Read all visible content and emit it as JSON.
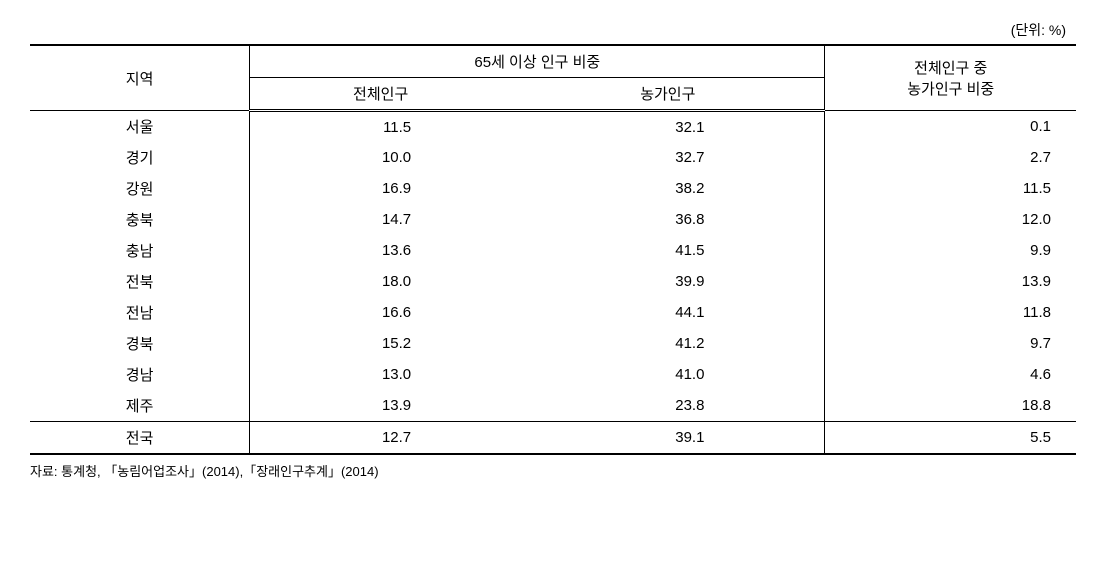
{
  "unit_label": "(단위: %)",
  "headers": {
    "region": "지역",
    "over65_group": "65세 이상 인구 비중",
    "total_pop": "전체인구",
    "farm_pop": "농가인구",
    "farm_share_line1": "전체인구 중",
    "farm_share_line2": "농가인구 비중"
  },
  "rows": {
    "r0": {
      "region": "서울",
      "total": "11.5",
      "farm": "32.1",
      "share": "0.1"
    },
    "r1": {
      "region": "경기",
      "total": "10.0",
      "farm": "32.7",
      "share": "2.7"
    },
    "r2": {
      "region": "강원",
      "total": "16.9",
      "farm": "38.2",
      "share": "11.5"
    },
    "r3": {
      "region": "충북",
      "total": "14.7",
      "farm": "36.8",
      "share": "12.0"
    },
    "r4": {
      "region": "충남",
      "total": "13.6",
      "farm": "41.5",
      "share": "9.9"
    },
    "r5": {
      "region": "전북",
      "total": "18.0",
      "farm": "39.9",
      "share": "13.9"
    },
    "r6": {
      "region": "전남",
      "total": "16.6",
      "farm": "44.1",
      "share": "11.8"
    },
    "r7": {
      "region": "경북",
      "total": "15.2",
      "farm": "41.2",
      "share": "9.7"
    },
    "r8": {
      "region": "경남",
      "total": "13.0",
      "farm": "41.0",
      "share": "4.6"
    },
    "r9": {
      "region": "제주",
      "total": "13.9",
      "farm": "23.8",
      "share": "18.8"
    },
    "r10": {
      "region": "전국",
      "total": "12.7",
      "farm": "39.1",
      "share": "5.5"
    }
  },
  "source": "자료: 통계청, 「농림어업조사」(2014),「장래인구추계」(2014)"
}
